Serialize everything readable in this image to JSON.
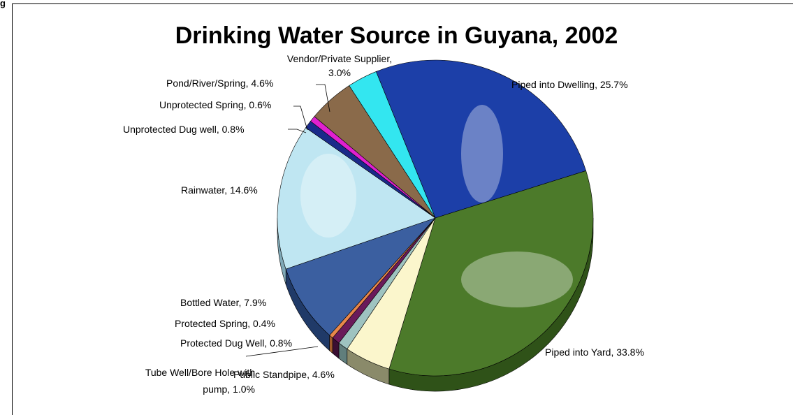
{
  "page_mark": "g",
  "chart_data": {
    "type": "pie",
    "title": "Drinking Water Source in Guyana, 2002",
    "categories": [
      "Piped into Dwelling",
      "Piped into Yard",
      "Public Standpipe",
      "Tube Well/Bore Hole with pump",
      "Protected Dug Well",
      "Protected Spring",
      "Bottled Water",
      "Rainwater",
      "Unprotected Dug well",
      "Unprotected Spring",
      "Pond/River/Spring",
      "Vendor/Private Supplier"
    ],
    "values": [
      25.7,
      33.8,
      4.6,
      1.0,
      0.8,
      0.4,
      7.9,
      14.6,
      0.8,
      0.6,
      4.6,
      3.0
    ],
    "data_labels": [
      [
        "Piped into Dwelling, 25.7%"
      ],
      [
        "Piped into Yard, 33.8%"
      ],
      [
        "Public Standpipe, 4.6%"
      ],
      [
        "Tube Well/Bore Hole with",
        "pump, 1.0%"
      ],
      [
        "Protected Dug Well, 0.8%"
      ],
      [
        "Protected Spring, 0.4%"
      ],
      [
        "Bottled Water, 7.9%"
      ],
      [
        "Rainwater, 14.6%"
      ],
      [
        "Unprotected Dug well, 0.8%"
      ],
      [
        "Unprotected Spring, 0.6%"
      ],
      [
        "Pond/River/Spring, 4.6%"
      ],
      [
        "Vendor/Private Supplier,",
        "3.0%"
      ]
    ],
    "colors": [
      "#1c3fa8",
      "#4c7a2a",
      "#fbf6cc",
      "#9ec3c0",
      "#6a1a5a",
      "#e8874a",
      "#3b5fa0",
      "#bfe6f2",
      "#1a2a8a",
      "#e020d0",
      "#8a6a4a",
      "#33e6f0"
    ],
    "side_colors": [
      "#0f2a7a",
      "#2f5218",
      "#8a8a6a",
      "#607e7c",
      "#3a0e32",
      "#a05a2a",
      "#203a68",
      "#7fa8b6",
      "#0e1858",
      "#90108a",
      "#5a4430",
      "#1fa6ae"
    ],
    "legend": "none"
  }
}
